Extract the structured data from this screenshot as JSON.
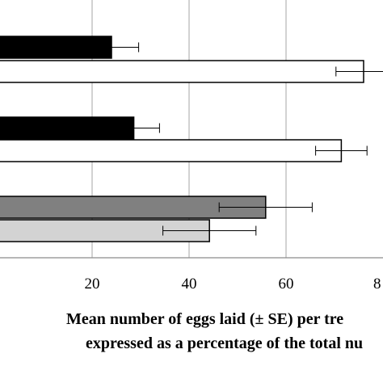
{
  "chart_data": {
    "type": "bar",
    "orientation": "horizontal",
    "xlabel_lines": [
      "Mean number of eggs laid (± SE) per tre",
      "expressed as a percentage of the total nu"
    ],
    "x_ticks": [
      "20",
      "40",
      "60",
      "8"
    ],
    "xlim": [
      0,
      80
    ],
    "grid": true,
    "bars": [
      {
        "value": 24.0,
        "error": 5.6,
        "color": "#000000"
      },
      {
        "value": 76.0,
        "error": 5.7,
        "color": "#ffffff"
      },
      {
        "value": 28.6,
        "error": 5.3,
        "color": "#000000"
      },
      {
        "value": 71.4,
        "error": 5.3,
        "color": "#ffffff"
      },
      {
        "value": 55.8,
        "error": 9.6,
        "color": "#808080"
      },
      {
        "value": 44.2,
        "error": 9.6,
        "color": "#d3d3d3"
      }
    ]
  }
}
